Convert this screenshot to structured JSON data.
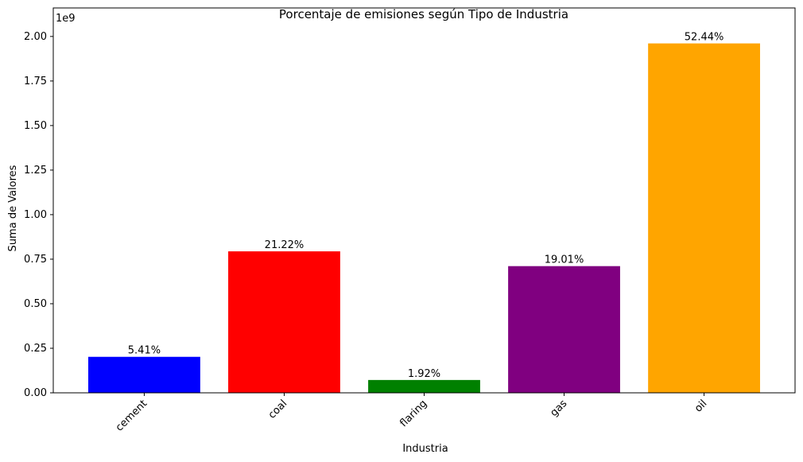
{
  "chart_data": {
    "type": "bar",
    "title": "Porcentaje de emisiones según Tipo de Industria",
    "x_label": "Industria",
    "y_label": "Suma de Valores",
    "y_offset_label": "1e9",
    "categories": [
      "cement",
      "coal",
      "flaring",
      "gas",
      "oil"
    ],
    "values": [
      0.202,
      0.794,
      0.072,
      0.711,
      1.961
    ],
    "colors": [
      "#0000ff",
      "#ff0000",
      "#008000",
      "#800080",
      "#ffa500"
    ],
    "percent_values": [
      5.41,
      21.22,
      1.92,
      19.01,
      52.44
    ],
    "percent_labels": [
      "5.41%",
      "21.22%",
      "1.92%",
      "19.01%",
      "52.44%"
    ],
    "ylim": [
      0,
      2.16
    ],
    "yticks": [
      {
        "value": 0,
        "label": "0.00"
      },
      0.25,
      {
        "value": 0.5,
        "label": "0.50"
      },
      0.75,
      {
        "value": 1,
        "label": "1.00"
      },
      1.25,
      {
        "value": 1.5,
        "label": "1.50"
      },
      1.75,
      {
        "value": 2,
        "label": "2.00"
      }
    ],
    "grid": false
  }
}
